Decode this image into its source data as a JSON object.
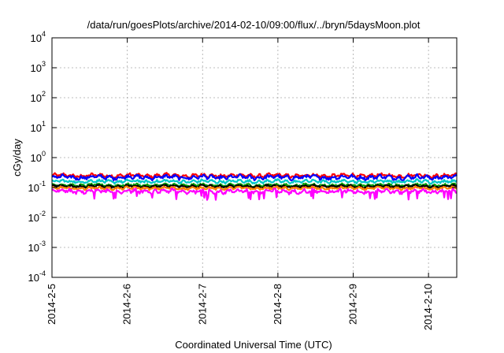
{
  "chart_data": {
    "type": "line",
    "title": "/data/run/goesPlots/archive/2014-02-10/09:00/flux/../bryn/5daysMoon.plot",
    "xlabel": "Coordinated Universal Time (UTC)",
    "ylabel": "cGy/day",
    "yscale": "log",
    "ylim": [
      0.0001,
      10000
    ],
    "xlim": [
      "2014-02-05 00:00",
      "2014-02-10 09:00"
    ],
    "x_ticks": [
      "2014-2-5",
      "2014-2-6",
      "2014-2-7",
      "2014-2-8",
      "2014-2-9",
      "2014-2-10"
    ],
    "y_ticks": [
      {
        "base": "10",
        "exp": "4"
      },
      {
        "base": "10",
        "exp": "3"
      },
      {
        "base": "10",
        "exp": "2"
      },
      {
        "base": "10",
        "exp": "1"
      },
      {
        "base": "10",
        "exp": "0"
      },
      {
        "base": "10",
        "exp": "-1"
      },
      {
        "base": "10",
        "exp": "-2"
      },
      {
        "base": "10",
        "exp": "-3"
      },
      {
        "base": "10",
        "exp": "-4"
      }
    ],
    "grid": true,
    "series": [
      {
        "color": "#ff0000",
        "level": 0.25,
        "amp": 0.14
      },
      {
        "color": "#0000ff",
        "level": 0.22,
        "amp": 0.16
      },
      {
        "color": "#00c8c8",
        "level": 0.16,
        "amp": 0.12
      },
      {
        "color": "#00a000",
        "level": 0.12,
        "amp": 0.1
      },
      {
        "color": "#000000",
        "level": 0.11,
        "amp": 0.1
      },
      {
        "color": "#ff8000",
        "level": 0.095,
        "amp": 0.1
      },
      {
        "color": "#ff00ff",
        "level": 0.075,
        "amp": 0.16
      }
    ]
  }
}
